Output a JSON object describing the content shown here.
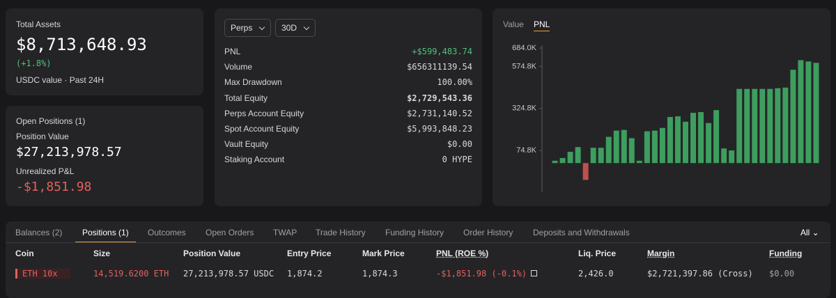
{
  "summary": {
    "title": "Total Assets",
    "value": "$8,713,648.93",
    "change": "(+1.8%)",
    "note": "USDC value · Past 24H"
  },
  "positions_card": {
    "title": "Open Positions (1)",
    "value_label": "Position Value",
    "value": "$27,213,978.57",
    "pnl_label": "Unrealized P&L",
    "pnl": "-$1,851.98"
  },
  "stats": {
    "filters": [
      "Perps",
      "30D"
    ],
    "rows": [
      {
        "label": "PNL",
        "value": "+$599,483.74"
      },
      {
        "label": "Volume",
        "value": "$656311139.54"
      },
      {
        "label": "Max Drawdown",
        "value": "100.00%"
      },
      {
        "label": "Total Equity",
        "value": "$2,729,543.36"
      },
      {
        "label": "Perps Account Equity",
        "value": "$2,731,140.52"
      },
      {
        "label": "Spot Account Equity",
        "value": "$5,993,848.23"
      },
      {
        "label": "Vault Equity",
        "value": "$0.00"
      },
      {
        "label": "Staking Account",
        "value": "0 HYPE"
      }
    ]
  },
  "chart_tabs": [
    "Value",
    "PNL"
  ],
  "chart_data": {
    "type": "bar",
    "values": [
      14000,
      30000,
      67000,
      95000,
      -100000,
      91000,
      91000,
      156000,
      193000,
      197000,
      148000,
      14000,
      189000,
      193000,
      209000,
      274000,
      278000,
      246000,
      299000,
      303000,
      238000,
      315000,
      87000,
      75000,
      441000,
      441000,
      441000,
      441000,
      441000,
      445000,
      449000,
      555000,
      612000,
      604000,
      596000
    ],
    "color": "#3e9e5f",
    "negative_color": "#c0504d",
    "ylim": [
      -173000,
      684000
    ],
    "yticks": [
      {
        "value": 74800,
        "label": "74.8K"
      },
      {
        "value": 324800,
        "label": "324.8K"
      },
      {
        "value": 574800,
        "label": "574.8K"
      },
      {
        "value": 684000,
        "label": "684.0K"
      }
    ],
    "grid": false
  },
  "tabs": [
    "Balances (2)",
    "Positions (1)",
    "Outcomes",
    "Open Orders",
    "TWAP",
    "Trade History",
    "Funding History",
    "Order History",
    "Deposits and Withdrawals"
  ],
  "filter": "All",
  "table": {
    "columns": [
      "Coin",
      "Size",
      "Position Value",
      "Entry Price",
      "Mark Price",
      "PNL (ROE %)",
      "Liq. Price",
      "Margin",
      "Funding"
    ],
    "rows": [
      [
        "ETH 10x",
        "14,519.6200 ETH",
        "27,213,978.57 USDC",
        "1,874.2",
        "1,874.3",
        "-$1,851.98 (-0.1%)",
        "2,426.0",
        "$2,721,397.86 (Cross)",
        "$0.00"
      ]
    ]
  }
}
